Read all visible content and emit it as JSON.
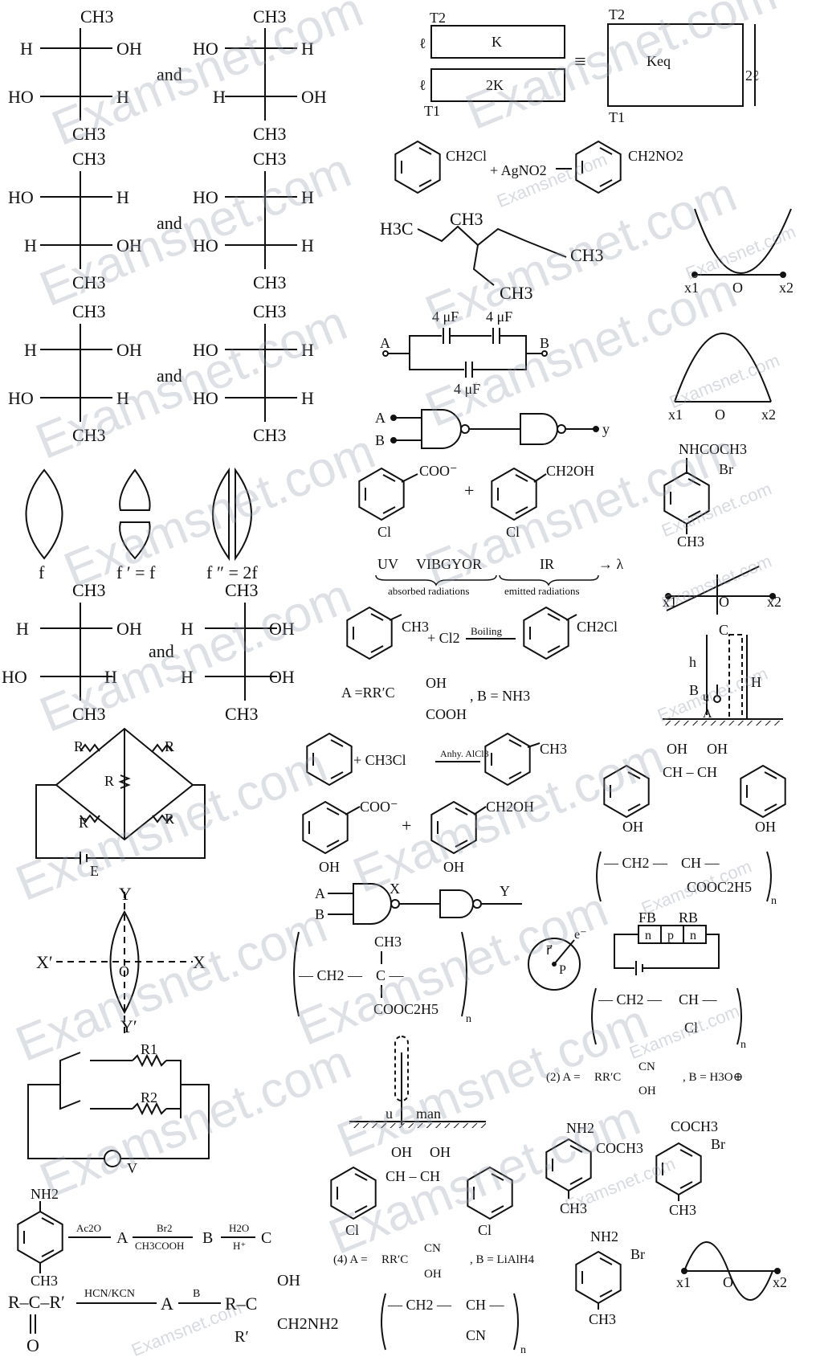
{
  "fischer": {
    "a": {
      "top": "CH3",
      "bottom": "CH3",
      "r1l": "H",
      "r1r": "OH",
      "r2l": "HO",
      "r2r": "H"
    },
    "b": {
      "top": "CH3",
      "bottom": "CH3",
      "r1l": "HO",
      "r1r": "H",
      "r2l": "H",
      "r2r": "OH"
    },
    "c": {
      "top": "CH3",
      "bottom": "CH3",
      "r1l": "HO",
      "r1r": "H",
      "r2l": "H",
      "r2r": "OH"
    },
    "d": {
      "top": "CH3",
      "bottom": "CH3",
      "r1l": "HO",
      "r1r": "H",
      "r2l": "HO",
      "r2r": "H"
    },
    "e": {
      "top": "CH3",
      "bottom": "CH3",
      "r1l": "H",
      "r1r": "OH",
      "r2l": "HO",
      "r2r": "H"
    },
    "f": {
      "top": "CH3",
      "bottom": "CH3",
      "r1l": "HO",
      "r1r": "H",
      "r2l": "HO",
      "r2r": "H"
    },
    "g": {
      "top": "CH3",
      "bottom": "CH3",
      "r1l": "H",
      "r1r": "OH",
      "r2l": "HO",
      "r2r": "H"
    },
    "h": {
      "top": "CH3",
      "bottom": "CH3",
      "r1l": "H",
      "r1r": "OH",
      "r2l": "H",
      "r2r": "OH"
    },
    "and": "and"
  },
  "slabs": {
    "t2": "T2",
    "t1": "T1",
    "l": "ℓ",
    "k": "K",
    "k2": "2K",
    "equiv": "≡",
    "keq": "Keq",
    "two_l": "2ℓ"
  },
  "reaction_agno2": {
    "left": "CH2Cl",
    "plus": "+ AgNO2",
    "right": "CH2NO2"
  },
  "alkane": {
    "h3c": "H3C",
    "ch3a": "CH3",
    "ch3b": "CH3",
    "ch3c": "CH3"
  },
  "parabola_up": {
    "x1": "x1",
    "o": "O",
    "x2": "x2"
  },
  "parabola_down": {
    "x1": "x1",
    "o": "O",
    "x2": "x2"
  },
  "sine": {
    "x1": "x1",
    "o": "O",
    "x2": "x2"
  },
  "line_graph": {
    "x1": "x1",
    "o": "O",
    "x2": "x2"
  },
  "capacitors": {
    "a": "A",
    "b": "B",
    "c1": "4 μF",
    "c2": "4 μF",
    "c3": "4 μF"
  },
  "gates1": {
    "a": "A",
    "b": "B",
    "y": "y"
  },
  "gates2": {
    "a": "A",
    "b": "B",
    "x": "X",
    "y": "Y"
  },
  "benzoate": {
    "coo": "COO⁻",
    "cl": "Cl",
    "plus": "+",
    "ch2oh": "CH2OH",
    "cl2": "Cl"
  },
  "benzoate2": {
    "coo": "COO⁻",
    "oh": "OH",
    "plus": "+",
    "ch2oh": "CH2OH",
    "oh2": "OH"
  },
  "acetanilide": {
    "nh": "NHCOCH3",
    "br": "Br",
    "ch3": "CH3"
  },
  "lenses": {
    "f": "f",
    "f1": "f ′ = f",
    "f2": "f ″ = 2f"
  },
  "spectrum": {
    "uv": "UV",
    "vib": "VIBGYOR",
    "ir": "IR",
    "lambda": "→ λ",
    "abs": "absorbed radiations",
    "emit": "emitted radiations"
  },
  "toluene_cl": {
    "ch3": "CH3",
    "plus": "+ Cl2",
    "cond": "Boiling",
    "prod": "CH2Cl"
  },
  "option_a": {
    "a": "A =RR′C",
    "oh": "OH",
    "cooh": "COOH",
    "b": ", B = NH3"
  },
  "projectile": {
    "c": "C",
    "h": "h",
    "hh": "H",
    "b": "B",
    "u": "u",
    "a": "A"
  },
  "bridge": {
    "r1": "R",
    "r2": "R",
    "r3": "R",
    "r4": "R",
    "r5": "R",
    "e": "E"
  },
  "fc": {
    "plus": "+ CH3Cl",
    "cond": "Anhy. AlCl3",
    "ch3": "CH3"
  },
  "diol_oh": {
    "oh1": "OH",
    "oh2": "OH",
    "link": "CH – CH",
    "ph1": "OH",
    "ph2": "OH"
  },
  "poly1": {
    "ch2": "— CH2 —",
    "ch": "CH —",
    "sub": "COOC2H5",
    "n": "n"
  },
  "lens_axes": {
    "y": "Y",
    "y2": "Y′",
    "x": "X",
    "x2": "X′",
    "o": "O"
  },
  "pmma": {
    "ch3": "CH3",
    "ch2": "— CH2 —",
    "c": "C —",
    "sub": "COOC2H5",
    "n": "n"
  },
  "electron": {
    "r": "r⃗",
    "p": "P",
    "e": "e⁻"
  },
  "diode": {
    "fb": "FB",
    "rb": "RB",
    "n1": "n",
    "p": "p",
    "n2": "n"
  },
  "pvc": {
    "ch2": "— CH2 —",
    "ch": "CH —",
    "sub": "Cl",
    "n": "n"
  },
  "ac_circuit": {
    "r1": "R1",
    "r2": "R2",
    "v": "V"
  },
  "man": {
    "u": "u",
    "man": "man"
  },
  "option2": {
    "lbl": "(2) A =",
    "rr": "RR′C",
    "cn": "CN",
    "oh": "OH",
    "b": ", B = H3O⊕"
  },
  "option4": {
    "lbl": "(4) A =",
    "rr": "RR′C",
    "cn": "CN",
    "oh": "OH",
    "b": ", B = LiAlH4"
  },
  "diol_cl": {
    "oh1": "OH",
    "oh2": "OH",
    "link": "CH – CH",
    "cl1": "Cl",
    "cl2": "Cl"
  },
  "aniline_seq": {
    "nh2": "NH2",
    "ch3": "CH3",
    "r1": "Ac2O",
    "a": "A",
    "r2": "Br2",
    "r2b": "CH3COOH",
    "b": "B",
    "r3": "H2O",
    "r3b": "H⁺",
    "c": "C"
  },
  "amino_ketone": {
    "nh2": "NH2",
    "coch3": "COCH3",
    "ch3": "CH3"
  },
  "bromo_ketone": {
    "coch3": "COCH3",
    "br": "Br",
    "ch3": "CH3"
  },
  "bromo_aniline": {
    "nh2": "NH2",
    "br": "Br",
    "ch3": "CH3"
  },
  "cyanohydrin": {
    "r": "R–C–R′",
    "o": "O",
    "reag": "HCN/KCN",
    "a": "A",
    "b": "B",
    "prod": "R–C",
    "oh": "OH",
    "ch2nh2": "CH2NH2",
    "rp": "R′"
  },
  "pan": {
    "ch2": "— CH2 —",
    "ch": "CH —",
    "sub": "CN",
    "n": "n"
  },
  "watermark": "Examsnet.com"
}
